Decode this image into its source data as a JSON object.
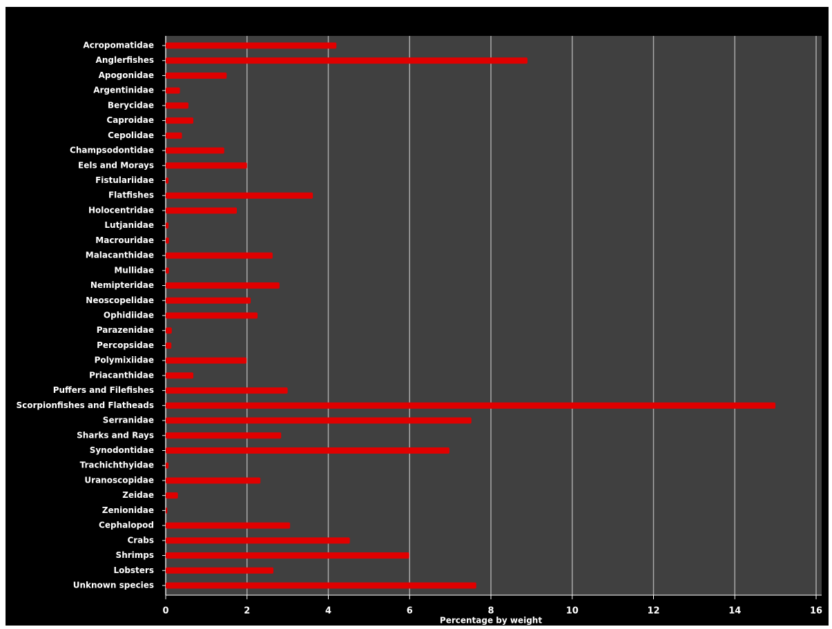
{
  "chart_data": {
    "type": "barh",
    "xlabel": "Percentage by weight",
    "categories": [
      "Acropomatidae",
      "Anglerfishes",
      "Apogonidae",
      "Argentinidae",
      "Berycidae",
      "Caproidae",
      "Cepolidae",
      "Champsodontidae",
      "Eels and Morays",
      "Fistulariidae",
      "Flatfishes",
      "Holocentridae",
      "Lutjanidae",
      "Macrouridae",
      "Malacanthidae",
      "Mullidae",
      "Nemipteridae",
      "Neoscopelidae",
      "Ophidiidae",
      "Parazenidae",
      "Percopsidae",
      "Polymixiidae",
      "Priacanthidae",
      "Puffers and Filefishes",
      "Scorpionfishes and Flatheads",
      "Serranidae",
      "Sharks and Rays",
      "Synodontidae",
      "Trachichthyidae",
      "Uranoscopidae",
      "Zeidae",
      "Zenionidae",
      "Cephalopod",
      "Crabs",
      "Shrimps",
      "Lobsters",
      "Unknown species"
    ],
    "values": [
      4.2,
      8.9,
      1.5,
      0.35,
      0.56,
      0.68,
      0.4,
      1.44,
      2.0,
      0.07,
      3.62,
      1.75,
      0.07,
      0.08,
      2.63,
      0.08,
      2.8,
      2.09,
      2.26,
      0.15,
      0.14,
      1.99,
      0.68,
      3.0,
      15.0,
      7.52,
      2.84,
      6.98,
      0.07,
      2.33,
      0.3,
      0.04,
      3.06,
      4.53,
      5.99,
      2.65,
      7.64
    ],
    "color": "#e00000",
    "xlim": [
      0,
      16
    ],
    "xticks": [
      0,
      2,
      4,
      6,
      8,
      10,
      12,
      14,
      16
    ],
    "grid": true
  }
}
